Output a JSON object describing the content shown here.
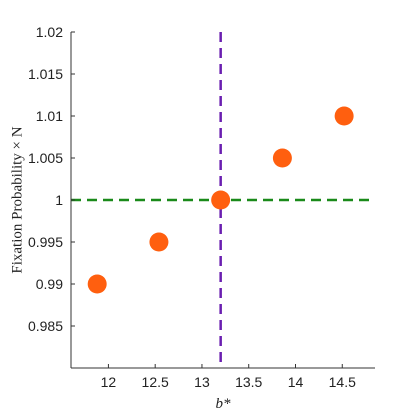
{
  "chart_data": {
    "type": "scatter",
    "title": "",
    "xlabel": "b*",
    "ylabel": "Fixation Probability × N",
    "xlim": [
      11.6,
      14.85
    ],
    "ylim": [
      0.98,
      1.02
    ],
    "xticks": [
      "12",
      "12.5",
      "13",
      "13.5",
      "14",
      "14.5"
    ],
    "xtick_values": [
      12,
      12.5,
      13,
      13.5,
      14,
      14.5
    ],
    "yticks": [
      "0.985",
      "0.99",
      "0.995",
      "1",
      "1.005",
      "1.01",
      "1.015",
      "1.02"
    ],
    "ytick_values": [
      0.985,
      0.99,
      0.995,
      1,
      1.005,
      1.01,
      1.015,
      1.02
    ],
    "grid": false,
    "series": [
      {
        "x": [
          11.88,
          12.54,
          13.2,
          13.86,
          14.52
        ],
        "y": [
          0.99,
          0.995,
          1.0,
          1.005,
          1.01
        ],
        "color": "#ff5f0f",
        "marker": "circle"
      }
    ],
    "reference_lines": [
      {
        "orientation": "horizontal",
        "value": 1.0,
        "color": "#1a8a1a",
        "style": "dashed"
      },
      {
        "orientation": "vertical",
        "value": 13.2,
        "color": "#6a1fb0",
        "style": "dashed"
      }
    ]
  }
}
